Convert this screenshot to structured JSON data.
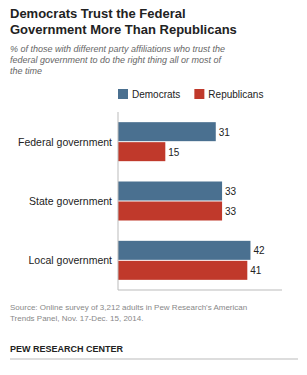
{
  "chart_data": {
    "type": "bar",
    "orientation": "horizontal",
    "title": "Democrats Trust the Federal\nGovernment More Than Republicans",
    "subtitle": "% of those with different party affiliations who trust the\nfederal government to do the right thing all or most of\nthe time",
    "categories": [
      "Federal government",
      "State government",
      "Local government"
    ],
    "series": [
      {
        "name": "Democrats",
        "color": "#4a7090",
        "values": [
          31,
          33,
          42
        ]
      },
      {
        "name": "Republicans",
        "color": "#c0392b",
        "values": [
          15,
          33,
          41
        ]
      }
    ],
    "xlim": [
      0,
      52
    ],
    "data_labels": true,
    "tick_labels": "y",
    "legend": "top",
    "annotations": [
      "Source: Online survey of 3,212 adults in Pew Research's American\nTrends Panel, Nov. 17-Dec. 15, 2014.",
      "PEW RESEARCH CENTER"
    ]
  }
}
